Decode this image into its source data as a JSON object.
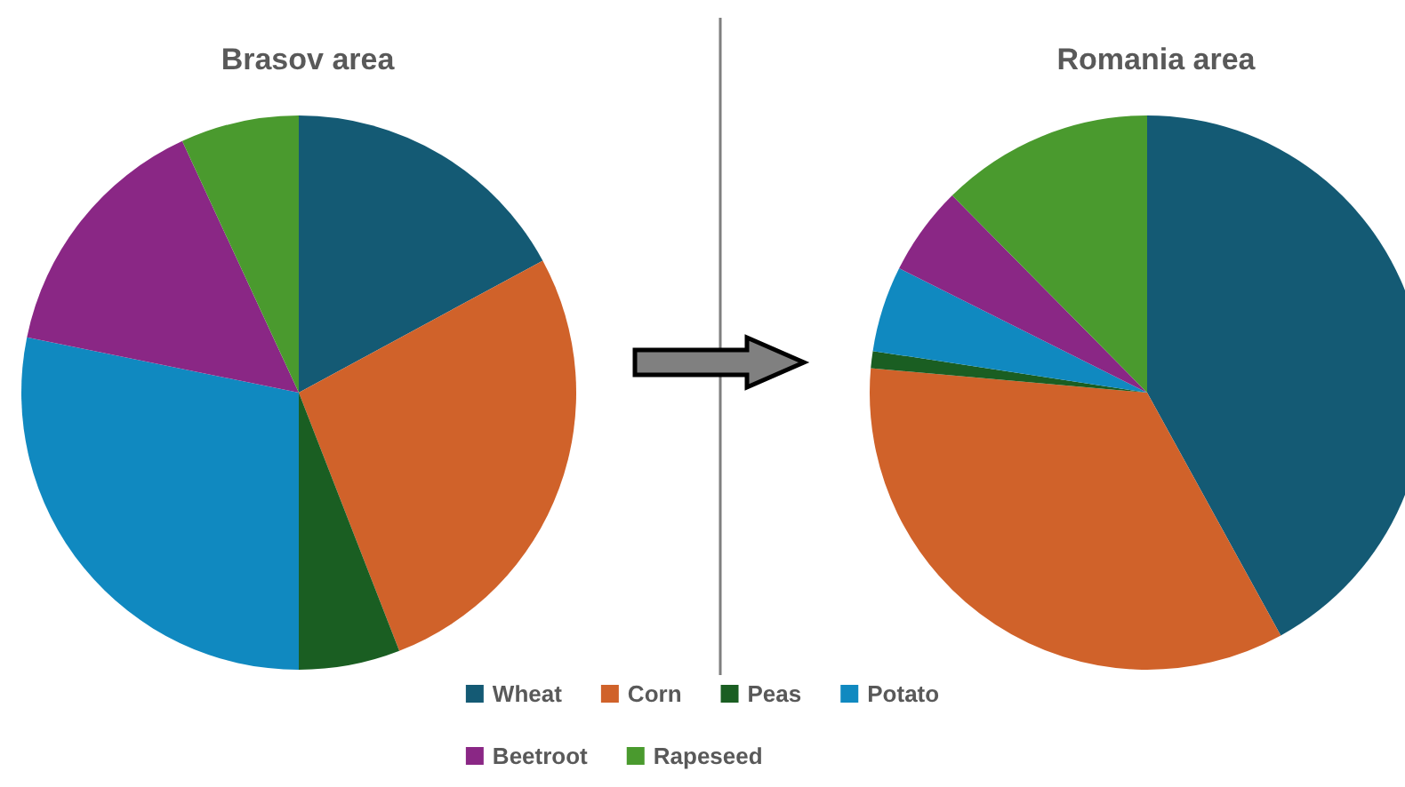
{
  "chart_data": {
    "type": "pie",
    "categories": [
      "Wheat",
      "Corn",
      "Peas",
      "Potato",
      "Beetroot",
      "Rapeseed"
    ],
    "colors": [
      "#145a74",
      "#d0622a",
      "#1a5e22",
      "#1089c0",
      "#8a2785",
      "#4a9a2e"
    ],
    "legend": "bottom",
    "series": [
      {
        "name": "Brasov area",
        "values": [
          17.1,
          27,
          5.9,
          28.2,
          14.9,
          6.9
        ]
      },
      {
        "name": "Romania area",
        "values": [
          42,
          34.4,
          1,
          5,
          5.2,
          12.4
        ]
      }
    ]
  }
}
